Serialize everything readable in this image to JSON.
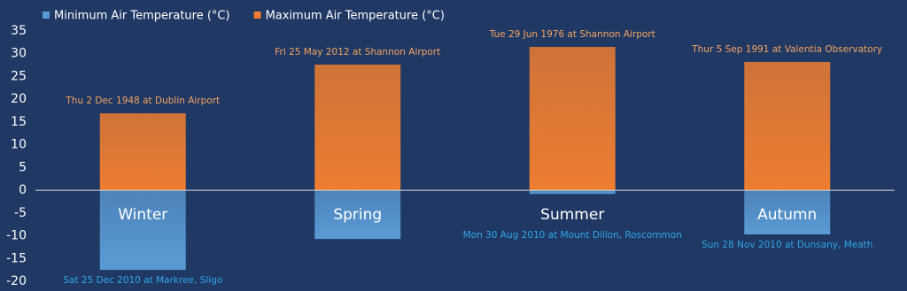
{
  "chart_data": {
    "type": "bar",
    "categories": [
      "Winter",
      "Spring",
      "Summer",
      "Autumn"
    ],
    "series": [
      {
        "name": "Minimum Air Temperature (°C)",
        "color": "#5b9bd5",
        "label_color": "#2fa6e6",
        "values": [
          -17.5,
          -10.7,
          -0.8,
          -9.7
        ],
        "annotations": [
          "Sat 25 Dec 2010 at Markree, Sligo",
          "",
          "Mon 30 Aug 2010 at Mount Dillon, Roscommon",
          "Sun 28 Nov 2010 at Dunsany, Meath"
        ]
      },
      {
        "name": "Maximum Air Temperature (°C)",
        "color": "#ed7d31",
        "label_color": "#f4a460",
        "values": [
          16.9,
          27.6,
          31.5,
          28.2
        ],
        "annotations": [
          "Thu 2 Dec 1948 at Dublin Airport",
          "Fri 25 May 2012 at Shannon Airport",
          "Tue 29 Jun 1976 at Shannon Airport",
          "Thur 5 Sep 1991 at Valentia Observatory"
        ]
      }
    ],
    "ylim": [
      -20,
      35
    ],
    "yticks": [
      -20,
      -15,
      -10,
      -5,
      0,
      5,
      10,
      15,
      20,
      25,
      30,
      35
    ],
    "legend": "top-left"
  }
}
